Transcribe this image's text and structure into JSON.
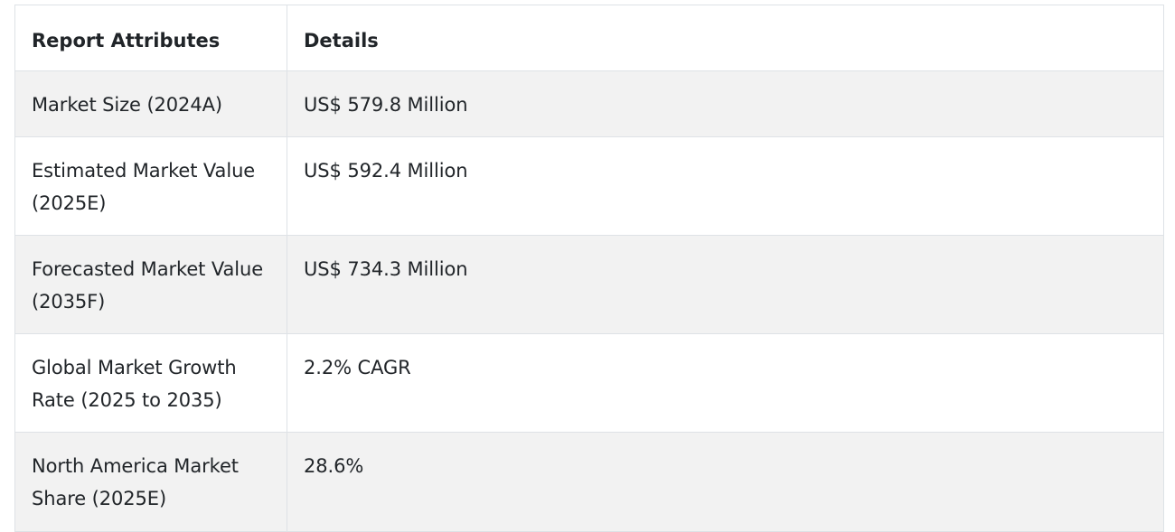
{
  "table": {
    "headers": [
      "Report Attributes",
      "Details"
    ],
    "rows": [
      {
        "attribute": "Market Size (2024A)",
        "detail": "US$ 579.8 Million"
      },
      {
        "attribute": "Estimated Market Value (2025E)",
        "detail": "US$ 592.4 Million"
      },
      {
        "attribute": "Forecasted Market Value (2035F)",
        "detail": "US$ 734.3 Million"
      },
      {
        "attribute": "Global Market Growth Rate (2025 to 2035)",
        "detail": "2.2% CAGR"
      },
      {
        "attribute": "North America Market Share (2025E)",
        "detail": "28.6%"
      }
    ]
  }
}
